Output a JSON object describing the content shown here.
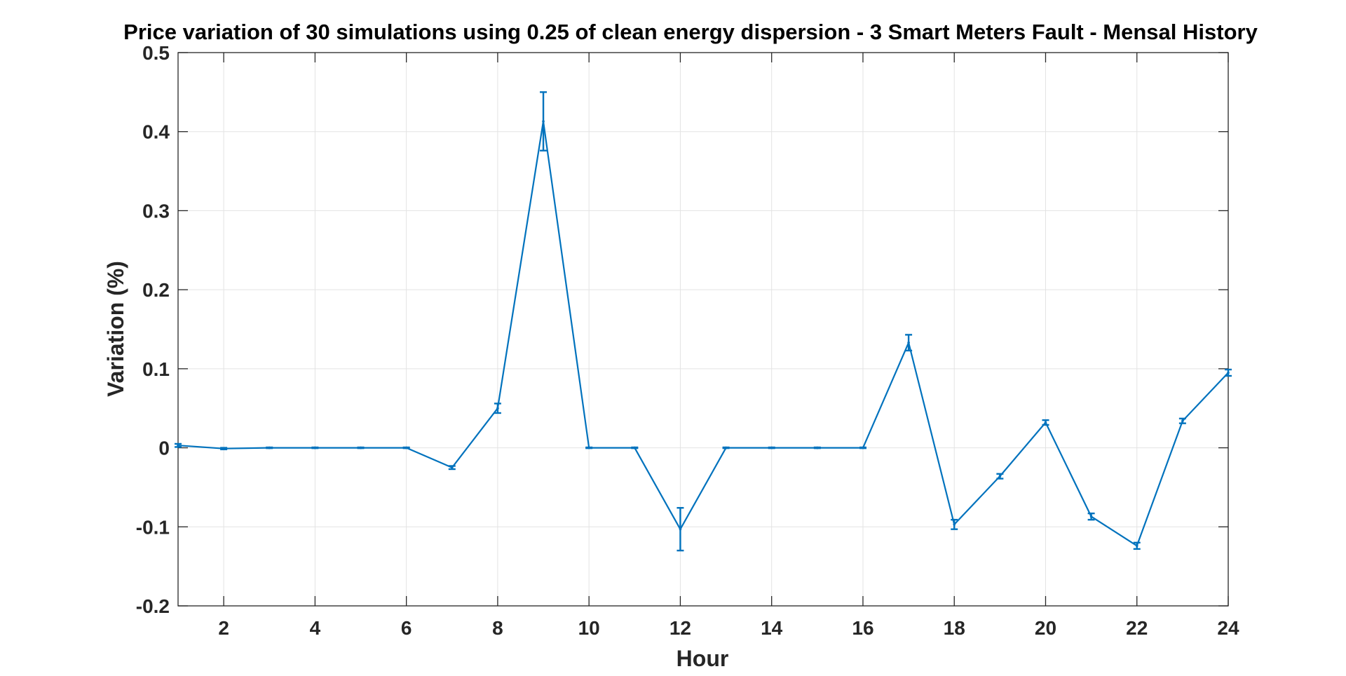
{
  "chart_data": {
    "type": "line",
    "title": "Price variation of 30 simulations using 0.25 of clean energy dispersion - 3 Smart Meters Fault - Mensal History",
    "xlabel": "Hour",
    "ylabel": "Variation (%)",
    "xlim": [
      1,
      24
    ],
    "ylim": [
      -0.2,
      0.5
    ],
    "xticks": [
      2,
      4,
      6,
      8,
      10,
      12,
      14,
      16,
      18,
      20,
      22,
      24
    ],
    "xtick_labels": [
      "2",
      "4",
      "6",
      "8",
      "10",
      "12",
      "14",
      "16",
      "18",
      "20",
      "22",
      "24"
    ],
    "yticks": [
      -0.2,
      -0.1,
      0,
      0.1,
      0.2,
      0.3,
      0.4,
      0.5
    ],
    "ytick_labels": [
      "-0.2",
      "-0.1",
      "0",
      "0.1",
      "0.2",
      "0.3",
      "0.4",
      "0.5"
    ],
    "grid": true,
    "color": "#0072BD",
    "series": [
      {
        "x": [
          1,
          2,
          3,
          4,
          5,
          6,
          7,
          8,
          9,
          10,
          11,
          12,
          13,
          14,
          15,
          16,
          17,
          18,
          19,
          20,
          21,
          22,
          23,
          24
        ],
        "y": [
          0.003,
          -0.001,
          0.0,
          0.0,
          0.0,
          0.0,
          -0.025,
          0.05,
          0.413,
          0.0,
          0.0,
          -0.103,
          0.0,
          0.0,
          0.0,
          0.0,
          0.133,
          -0.097,
          -0.036,
          0.032,
          -0.087,
          -0.124,
          0.034,
          0.095
        ],
        "error": [
          0.002,
          0.001,
          0.0005,
          0.0005,
          0.0005,
          0.0005,
          0.002,
          0.006,
          0.037,
          0.0005,
          0.0005,
          0.027,
          0.0005,
          0.0005,
          0.0005,
          0.0005,
          0.01,
          0.006,
          0.003,
          0.003,
          0.004,
          0.004,
          0.003,
          0.004
        ]
      }
    ]
  }
}
